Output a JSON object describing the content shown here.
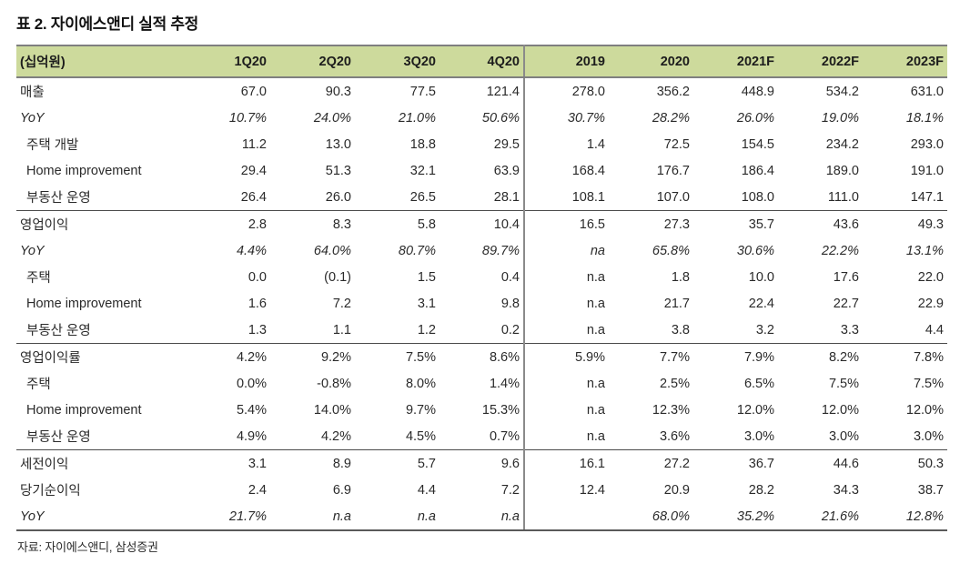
{
  "page": {
    "title": "표 2. 자이에스앤디 실적 추정",
    "source": "자료: 자이에스앤디, 삼성증권"
  },
  "colors": {
    "header_bg": "#cdda9c",
    "border_strong": "#7f7f7f",
    "border_section": "#4a4a4a",
    "text": "#252525"
  },
  "chart_data": {
    "type": "table",
    "unit_label": "(십억원)",
    "columns": [
      "(십억원)",
      "1Q20",
      "2Q20",
      "3Q20",
      "4Q20",
      "2019",
      "2020",
      "2021F",
      "2022F",
      "2023F"
    ],
    "divider_after_column": "4Q20",
    "rows": [
      {
        "label": "매출",
        "type": "main",
        "section_start": false,
        "values": [
          "67.0",
          "90.3",
          "77.5",
          "121.4",
          "278.0",
          "356.2",
          "448.9",
          "534.2",
          "631.0"
        ]
      },
      {
        "label": "YoY",
        "type": "yoy",
        "section_start": false,
        "values": [
          "10.7%",
          "24.0%",
          "21.0%",
          "50.6%",
          "30.7%",
          "28.2%",
          "26.0%",
          "19.0%",
          "18.1%"
        ]
      },
      {
        "label": "주택 개발",
        "type": "sub",
        "section_start": false,
        "values": [
          "11.2",
          "13.0",
          "18.8",
          "29.5",
          "1.4",
          "72.5",
          "154.5",
          "234.2",
          "293.0"
        ]
      },
      {
        "label": "Home improvement",
        "type": "sub",
        "section_start": false,
        "values": [
          "29.4",
          "51.3",
          "32.1",
          "63.9",
          "168.4",
          "176.7",
          "186.4",
          "189.0",
          "191.0"
        ]
      },
      {
        "label": "부동산 운영",
        "type": "sub",
        "section_start": false,
        "values": [
          "26.4",
          "26.0",
          "26.5",
          "28.1",
          "108.1",
          "107.0",
          "108.0",
          "111.0",
          "147.1"
        ]
      },
      {
        "label": "영업이익",
        "type": "main",
        "section_start": true,
        "values": [
          "2.8",
          "8.3",
          "5.8",
          "10.4",
          "16.5",
          "27.3",
          "35.7",
          "43.6",
          "49.3"
        ]
      },
      {
        "label": "YoY",
        "type": "yoy",
        "section_start": false,
        "values": [
          "4.4%",
          "64.0%",
          "80.7%",
          "89.7%",
          "na",
          "65.8%",
          "30.6%",
          "22.2%",
          "13.1%"
        ]
      },
      {
        "label": "주택",
        "type": "sub",
        "section_start": false,
        "values": [
          "0.0",
          "(0.1)",
          "1.5",
          "0.4",
          "n.a",
          "1.8",
          "10.0",
          "17.6",
          "22.0"
        ]
      },
      {
        "label": "Home improvement",
        "type": "sub",
        "section_start": false,
        "values": [
          "1.6",
          "7.2",
          "3.1",
          "9.8",
          "n.a",
          "21.7",
          "22.4",
          "22.7",
          "22.9"
        ]
      },
      {
        "label": "부동산 운영",
        "type": "sub",
        "section_start": false,
        "values": [
          "1.3",
          "1.1",
          "1.2",
          "0.2",
          "n.a",
          "3.8",
          "3.2",
          "3.3",
          "4.4"
        ]
      },
      {
        "label": "영업이익률",
        "type": "main",
        "section_start": true,
        "values": [
          "4.2%",
          "9.2%",
          "7.5%",
          "8.6%",
          "5.9%",
          "7.7%",
          "7.9%",
          "8.2%",
          "7.8%"
        ]
      },
      {
        "label": "주택",
        "type": "sub",
        "section_start": false,
        "values": [
          "0.0%",
          "-0.8%",
          "8.0%",
          "1.4%",
          "n.a",
          "2.5%",
          "6.5%",
          "7.5%",
          "7.5%"
        ]
      },
      {
        "label": "Home improvement",
        "type": "sub",
        "section_start": false,
        "values": [
          "5.4%",
          "14.0%",
          "9.7%",
          "15.3%",
          "n.a",
          "12.3%",
          "12.0%",
          "12.0%",
          "12.0%"
        ]
      },
      {
        "label": "부동산 운영",
        "type": "sub",
        "section_start": false,
        "values": [
          "4.9%",
          "4.2%",
          "4.5%",
          "0.7%",
          "n.a",
          "3.6%",
          "3.0%",
          "3.0%",
          "3.0%"
        ]
      },
      {
        "label": "세전이익",
        "type": "main",
        "section_start": true,
        "values": [
          "3.1",
          "8.9",
          "5.7",
          "9.6",
          "16.1",
          "27.2",
          "36.7",
          "44.6",
          "50.3"
        ]
      },
      {
        "label": "당기순이익",
        "type": "main",
        "section_start": false,
        "values": [
          "2.4",
          "6.9",
          "4.4",
          "7.2",
          "12.4",
          "20.9",
          "28.2",
          "34.3",
          "38.7"
        ]
      },
      {
        "label": "YoY",
        "type": "yoy",
        "section_start": false,
        "values": [
          "21.7%",
          "n.a",
          "n.a",
          "n.a",
          "",
          "68.0%",
          "35.2%",
          "21.6%",
          "12.8%"
        ]
      }
    ]
  }
}
